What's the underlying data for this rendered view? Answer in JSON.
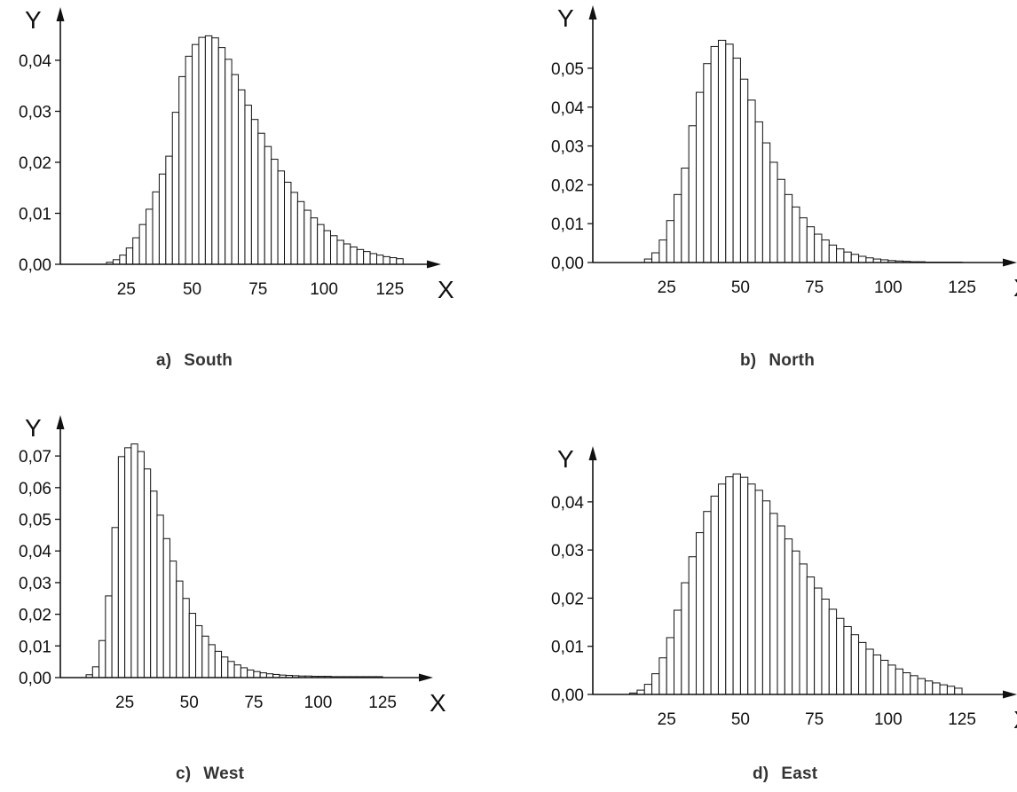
{
  "chart_data": [
    {
      "id": "a",
      "type": "bar",
      "caption_letter": "a)",
      "title": "South",
      "xlabel": "X",
      "ylabel": "Y",
      "xticks": [
        25,
        50,
        75,
        100,
        125
      ],
      "yticks": [
        "0,00",
        "0,01",
        "0,02",
        "0,03",
        "0,04"
      ],
      "yticks_values": [
        0,
        0.01,
        0.02,
        0.03,
        0.04
      ],
      "xlim": [
        0,
        137
      ],
      "ylim": [
        0,
        0.048
      ],
      "bin_width": 2.5,
      "bins": [
        17.5,
        20,
        22.5,
        25,
        27.5,
        30,
        32.5,
        35,
        37.5,
        40,
        42.5,
        45,
        47.5,
        50,
        52.5,
        55,
        57.5,
        60,
        62.5,
        65,
        67.5,
        70,
        72.5,
        75,
        77.5,
        80,
        82.5,
        85,
        87.5,
        90,
        92.5,
        95,
        97.5,
        100,
        102.5,
        105,
        107.5,
        110,
        112.5,
        115,
        117.5,
        120,
        122.5,
        125,
        127.5
      ],
      "values": [
        0.0004,
        0.0009,
        0.0018,
        0.0032,
        0.0052,
        0.0078,
        0.0108,
        0.0142,
        0.0177,
        0.0212,
        0.0298,
        0.0368,
        0.0408,
        0.0431,
        0.0445,
        0.0448,
        0.0444,
        0.0425,
        0.0402,
        0.0372,
        0.0342,
        0.0312,
        0.0284,
        0.0257,
        0.0231,
        0.0206,
        0.0183,
        0.0161,
        0.0141,
        0.0123,
        0.0106,
        0.0091,
        0.0078,
        0.0066,
        0.0056,
        0.0047,
        0.004,
        0.0034,
        0.0029,
        0.0025,
        0.0021,
        0.0018,
        0.0015,
        0.0013,
        0.0011
      ]
    },
    {
      "id": "b",
      "type": "bar",
      "caption_letter": "b)",
      "title": "North",
      "xlabel": "X",
      "ylabel": "Y",
      "xticks": [
        25,
        50,
        75,
        100,
        125
      ],
      "yticks": [
        "0,00",
        "0,01",
        "0,02",
        "0,03",
        "0,04",
        "0,05"
      ],
      "yticks_values": [
        0,
        0.01,
        0.02,
        0.03,
        0.04,
        0.05
      ],
      "xlim": [
        0,
        137
      ],
      "ylim": [
        0,
        0.063
      ],
      "bin_width": 2.5,
      "bins": [
        17.5,
        20,
        22.5,
        25,
        27.5,
        30,
        32.5,
        35,
        37.5,
        40,
        42.5,
        45,
        47.5,
        50,
        52.5,
        55,
        57.5,
        60,
        62.5,
        65,
        67.5,
        70,
        72.5,
        75,
        77.5,
        80,
        82.5,
        85,
        87.5,
        90,
        92.5,
        95,
        97.5,
        100,
        102.5,
        105,
        107.5,
        110,
        112.5,
        115,
        117.5,
        120,
        122.5
      ],
      "values": [
        0.0009,
        0.0025,
        0.0058,
        0.0108,
        0.0175,
        0.0243,
        0.0352,
        0.0438,
        0.0512,
        0.0556,
        0.0572,
        0.0562,
        0.0526,
        0.0472,
        0.0418,
        0.0362,
        0.0308,
        0.0258,
        0.0214,
        0.0175,
        0.0143,
        0.0115,
        0.0092,
        0.0073,
        0.0058,
        0.0045,
        0.0035,
        0.0027,
        0.0021,
        0.0016,
        0.0012,
        0.0009,
        0.0007,
        0.0005,
        0.0004,
        0.0003,
        0.0002,
        0.0002,
        0.0001,
        0.0001,
        0.0001,
        0.0001,
        0.0001
      ]
    },
    {
      "id": "c",
      "type": "bar",
      "caption_letter": "c)",
      "title": "West",
      "xlabel": "X",
      "ylabel": "Y",
      "xticks": [
        25,
        50,
        75,
        100,
        125
      ],
      "yticks": [
        "0,00",
        "0,01",
        "0,02",
        "0,03",
        "0,04",
        "0,05",
        "0,06",
        "0,07"
      ],
      "yticks_values": [
        0,
        0.01,
        0.02,
        0.03,
        0.04,
        0.05,
        0.06,
        0.07
      ],
      "xlim": [
        0,
        137
      ],
      "ylim": [
        0,
        0.079
      ],
      "bin_width": 2.5,
      "bins": [
        10,
        12.5,
        15,
        17.5,
        20,
        22.5,
        25,
        27.5,
        30,
        32.5,
        35,
        37.5,
        40,
        42.5,
        45,
        47.5,
        50,
        52.5,
        55,
        57.5,
        60,
        62.5,
        65,
        67.5,
        70,
        72.5,
        75,
        77.5,
        80,
        82.5,
        85,
        87.5,
        90,
        92.5,
        95,
        97.5,
        100,
        102.5,
        105,
        107.5,
        110,
        112.5,
        115,
        117.5,
        120,
        122.5
      ],
      "values": [
        0.0009,
        0.0034,
        0.0117,
        0.0258,
        0.0474,
        0.0698,
        0.0726,
        0.0738,
        0.0714,
        0.0659,
        0.0589,
        0.0513,
        0.0439,
        0.0368,
        0.0305,
        0.025,
        0.0203,
        0.0164,
        0.0131,
        0.0104,
        0.0083,
        0.0065,
        0.0051,
        0.004,
        0.0031,
        0.0024,
        0.0019,
        0.0015,
        0.0012,
        0.001,
        0.0008,
        0.0007,
        0.0006,
        0.0005,
        0.0005,
        0.0004,
        0.0004,
        0.0004,
        0.0003,
        0.0003,
        0.0003,
        0.0003,
        0.0003,
        0.0003,
        0.0003,
        0.0003
      ]
    },
    {
      "id": "d",
      "type": "bar",
      "caption_letter": "d)",
      "title": "East",
      "xlabel": "X",
      "ylabel": "Y",
      "xticks": [
        25,
        50,
        75,
        100,
        125
      ],
      "yticks": [
        "0,00",
        "0,01",
        "0,02",
        "0,03",
        "0,04"
      ],
      "yticks_values": [
        0,
        0.01,
        0.02,
        0.03,
        0.04
      ],
      "xlim": [
        0,
        137
      ],
      "ylim": [
        0,
        0.049
      ],
      "bin_width": 2.5,
      "bins": [
        12.5,
        15,
        17.5,
        20,
        22.5,
        25,
        27.5,
        30,
        32.5,
        35,
        37.5,
        40,
        42.5,
        45,
        47.5,
        50,
        52.5,
        55,
        57.5,
        60,
        62.5,
        65,
        67.5,
        70,
        72.5,
        75,
        77.5,
        80,
        82.5,
        85,
        87.5,
        90,
        92.5,
        95,
        97.5,
        100,
        102.5,
        105,
        107.5,
        110,
        112.5,
        115,
        117.5,
        120,
        122.5
      ],
      "values": [
        0.0003,
        0.0009,
        0.0021,
        0.0043,
        0.0076,
        0.0118,
        0.0175,
        0.0232,
        0.0286,
        0.0336,
        0.038,
        0.0412,
        0.0437,
        0.0452,
        0.0458,
        0.0451,
        0.0437,
        0.0424,
        0.0402,
        0.0376,
        0.035,
        0.0323,
        0.0298,
        0.0271,
        0.0244,
        0.0221,
        0.0198,
        0.0177,
        0.0158,
        0.0141,
        0.0124,
        0.0108,
        0.0094,
        0.0082,
        0.0071,
        0.0061,
        0.0053,
        0.0045,
        0.0039,
        0.0033,
        0.0028,
        0.0024,
        0.002,
        0.0017,
        0.0013
      ]
    }
  ]
}
